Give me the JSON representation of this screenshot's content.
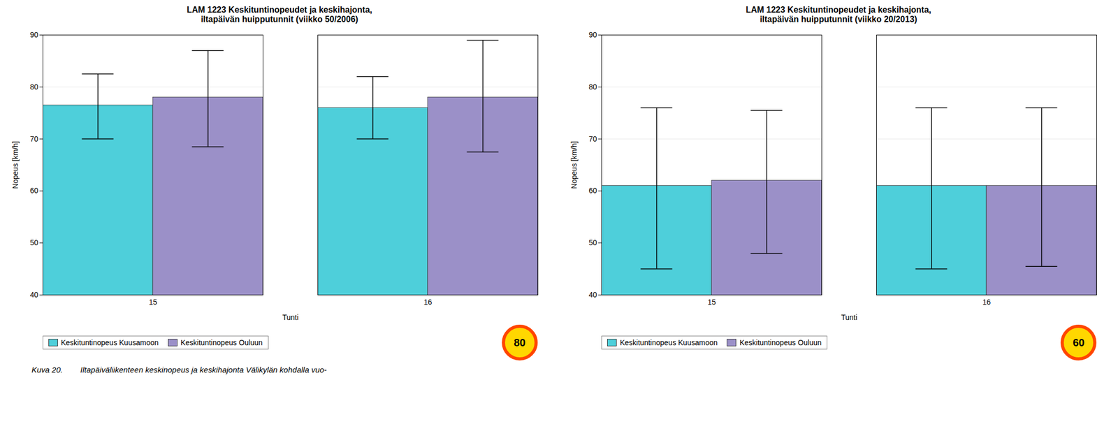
{
  "chart_data": [
    {
      "type": "bar",
      "title": "LAM 1223 Keskituntinopeudet ja keskihajonta,\niltapäivän huipputunnit (viikko 50/2006)",
      "xlabel": "Tunti",
      "ylabel": "Nopeus [km/h]",
      "categories": [
        "15",
        "16"
      ],
      "series": [
        {
          "name": "Keskituntinopeus Kuusamoon",
          "color": "#4ECFDA",
          "values": [
            76.5,
            76.0
          ],
          "err_up": [
            6.0,
            6.0
          ],
          "err_down": [
            6.5,
            6.0
          ]
        },
        {
          "name": "Keskituntinopeus Ouluun",
          "color": "#9B90C8",
          "values": [
            78.0,
            78.0
          ],
          "err_up": [
            9.0,
            11.0
          ],
          "err_down": [
            9.5,
            10.5
          ]
        }
      ],
      "ylim": [
        40,
        90
      ],
      "yticks": [
        40,
        50,
        60,
        70,
        80,
        90
      ],
      "grid": true,
      "legend": "bottom",
      "annotations": [
        "80"
      ]
    },
    {
      "type": "bar",
      "title": "LAM 1223 Keskituntinopeudet ja keskihajonta,\niltapäivän huipputunnit (viikko 20/2013)",
      "xlabel": "Tunti",
      "ylabel": "Nopeus [km/h]",
      "categories": [
        "15",
        "16"
      ],
      "series": [
        {
          "name": "Keskituntinopeus Kuusamoon",
          "color": "#4ECFDA",
          "values": [
            61.0,
            61.0
          ],
          "err_up": [
            15.0,
            15.0
          ],
          "err_down": [
            16.0,
            16.0
          ]
        },
        {
          "name": "Keskituntinopeus Ouluun",
          "color": "#9B90C8",
          "values": [
            62.0,
            61.0
          ],
          "err_up": [
            13.5,
            15.0
          ],
          "err_down": [
            14.0,
            15.5
          ]
        }
      ],
      "ylim": [
        40,
        90
      ],
      "yticks": [
        40,
        50,
        60,
        70,
        80,
        90
      ],
      "grid": true,
      "legend": "bottom",
      "annotations": [
        "60"
      ]
    }
  ],
  "caption": "Kuva 20.        Iltapäiväliikenteen keskinopeus ja keskihajonta Välikylän kohdalla vuo-"
}
